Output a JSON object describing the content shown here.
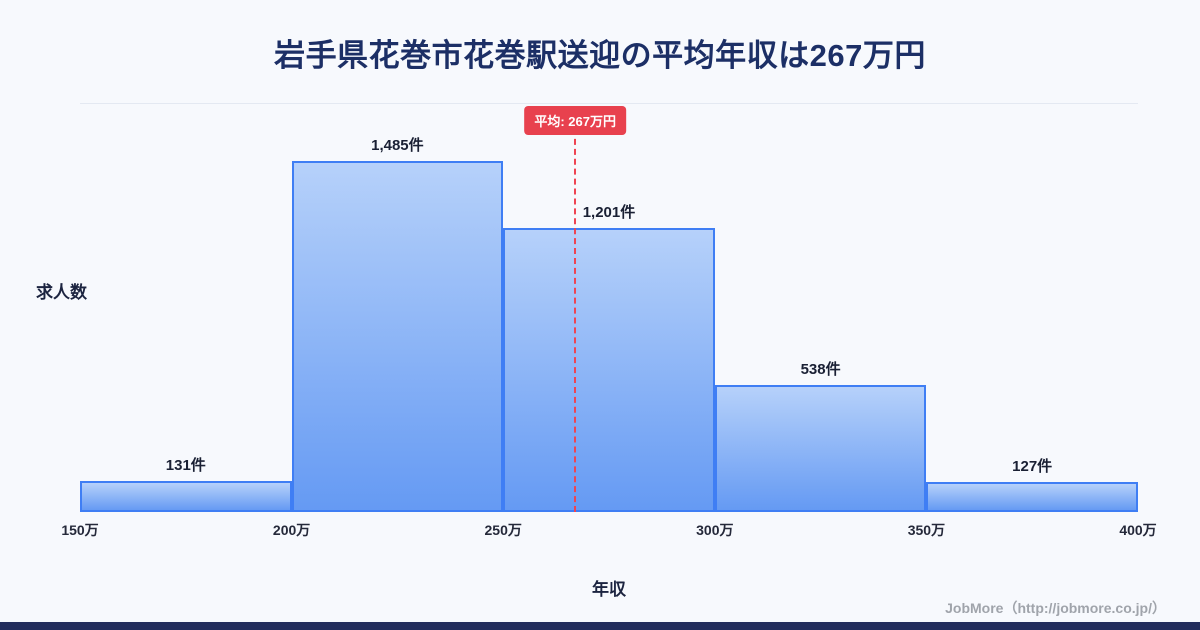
{
  "title": "岩手県花巻市花巻駅送迎の平均年収は267万円",
  "footer": "JobMore（http://jobmore.co.jp/）",
  "chart_data": {
    "type": "bar",
    "subtype": "histogram",
    "title": "岩手県花巻市花巻駅送迎の平均年収は267万円",
    "xlabel": "年収",
    "ylabel": "求人数",
    "x_ticks": [
      "150万",
      "200万",
      "250万",
      "300万",
      "350万",
      "400万"
    ],
    "x_range_man_yen": [
      150,
      400
    ],
    "bin_width_man_yen": 50,
    "categories": [
      "150万-200万",
      "200万-250万",
      "250万-300万",
      "300万-350万",
      "350万-400万"
    ],
    "values": [
      131,
      1485,
      1201,
      538,
      127
    ],
    "value_labels": [
      "131件",
      "1,485件",
      "1,201件",
      "538件",
      "127件"
    ],
    "average_man_yen": 267,
    "average_label": "平均: 267万円",
    "grid": false,
    "legend": "none",
    "colors": {
      "bar_fill_top": "#b6d1fa",
      "bar_fill_bottom": "#659af3",
      "bar_border": "#3f7ef4",
      "average_line": "#ef4452",
      "badge_bg": "#e8414e",
      "badge_text": "#ffffff",
      "title_text": "#1c2f66",
      "accent_strip": "#222d5c",
      "background": "#f7f9fd"
    }
  }
}
